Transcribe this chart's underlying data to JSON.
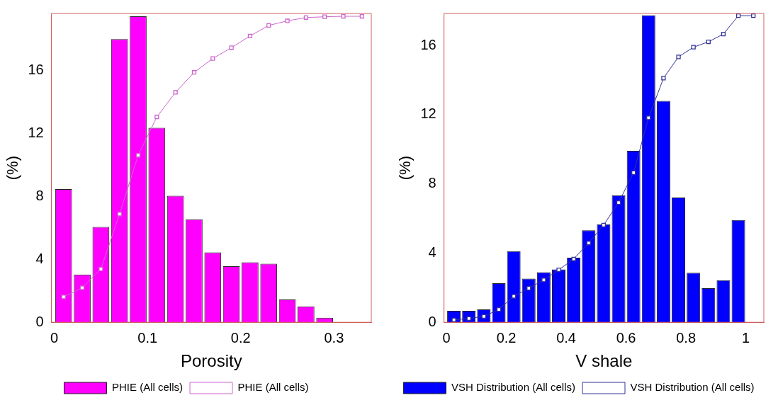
{
  "chart_data": [
    {
      "type": "histogram",
      "xlabel": "Porosity",
      "ylabel": "(%)",
      "bins": [
        0,
        0.02,
        0.04,
        0.06,
        0.08,
        0.1,
        0.12,
        0.14,
        0.16,
        0.18,
        0.2,
        0.22,
        0.24,
        0.26,
        0.28,
        0.3
      ],
      "xlim": [
        -0.003,
        0.34
      ],
      "xticks": [
        0,
        0.1,
        0.2,
        0.3
      ],
      "ylim": [
        0,
        19.6
      ],
      "yticks": [
        0,
        4,
        8,
        12,
        16
      ],
      "grid": false,
      "legend": "bottom",
      "marker": "square",
      "series": [
        {
          "name": "PHIE (All cells)",
          "color": "#ff00ff",
          "values": [
            8.46,
            3.03,
            6.05,
            17.97,
            19.42,
            12.34,
            8.03,
            6.54,
            4.43,
            3.56,
            3.81,
            3.72,
            1.45,
            1.01,
            0.29
          ]
        },
        {
          "type": "line",
          "name": "PHIE (All cells)",
          "color": "#cc66cc",
          "x": [
            0.01,
            0.03,
            0.05,
            0.07,
            0.09,
            0.11,
            0.13,
            0.15,
            0.17,
            0.19,
            0.21,
            0.23,
            0.25,
            0.27,
            0.29,
            0.31,
            0.33
          ],
          "values": [
            1.61,
            2.19,
            3.38,
            6.87,
            10.6,
            13.03,
            14.59,
            15.86,
            16.74,
            17.43,
            18.17,
            18.84,
            19.13,
            19.34,
            19.39,
            19.42,
            19.42
          ]
        }
      ]
    },
    {
      "type": "histogram",
      "xlabel": "V shale",
      "ylabel": "(%)",
      "bins": [
        0,
        0.05,
        0.1,
        0.15,
        0.2,
        0.25,
        0.3,
        0.35,
        0.4,
        0.45,
        0.5,
        0.55,
        0.6,
        0.65,
        0.7,
        0.75,
        0.8,
        0.85,
        0.9,
        0.95,
        1
      ],
      "xlim": [
        -0.008,
        1.06
      ],
      "xticks": [
        0,
        0.2,
        0.4,
        0.6,
        0.8,
        1
      ],
      "ylim": [
        0,
        17.85
      ],
      "yticks": [
        0,
        4,
        8,
        12,
        16
      ],
      "grid": false,
      "legend": "bottom",
      "marker": "square",
      "series": [
        {
          "name": "VSH Distribution (All cells)",
          "color": "#0000ff",
          "values": [
            0.66,
            0.66,
            0.74,
            2.26,
            4.11,
            2.52,
            2.89,
            3.06,
            3.73,
            5.32,
            5.67,
            7.34,
            9.91,
            17.75,
            12.8,
            7.21,
            2.86,
            1.97,
            2.43,
            5.91
          ]
        },
        {
          "type": "line",
          "name": "VSH Distribution (All cells)",
          "color": "#333399",
          "x": [
            0.025,
            0.075,
            0.125,
            0.175,
            0.225,
            0.275,
            0.325,
            0.375,
            0.425,
            0.475,
            0.525,
            0.575,
            0.625,
            0.675,
            0.725,
            0.775,
            0.825,
            0.875,
            0.925,
            0.975,
            1.025
          ],
          "values": [
            0.14,
            0.22,
            0.34,
            0.74,
            1.5,
            1.97,
            2.45,
            3.03,
            3.66,
            4.58,
            5.62,
            6.92,
            8.65,
            11.82,
            14.11,
            15.34,
            15.9,
            16.21,
            16.66,
            17.72,
            17.72
          ]
        }
      ]
    }
  ]
}
